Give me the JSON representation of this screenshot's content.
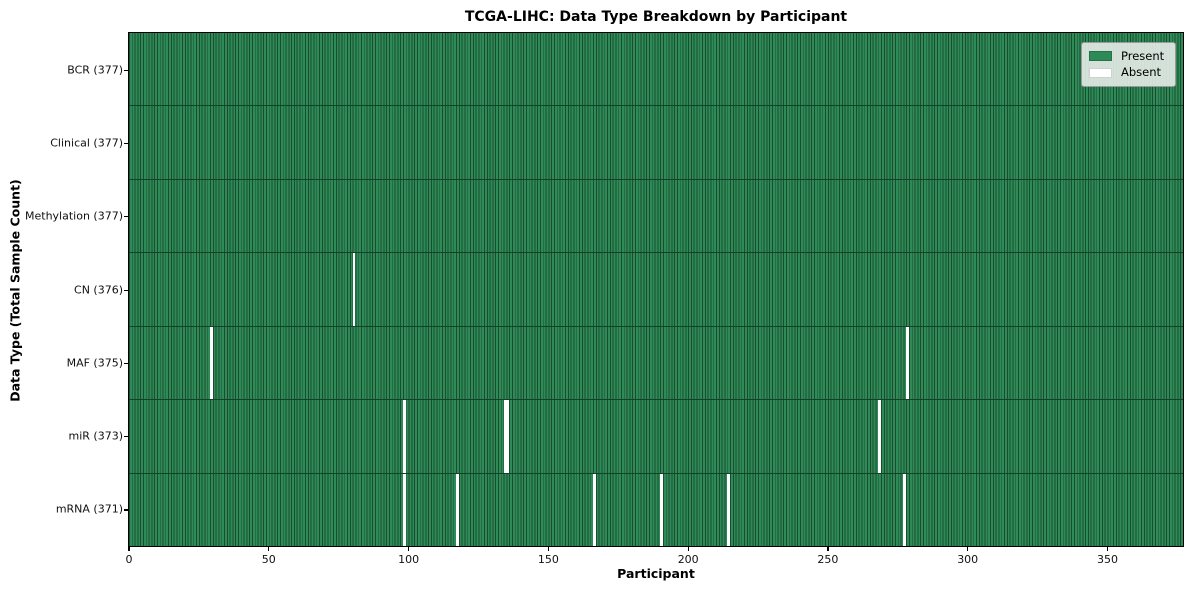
{
  "chart_data": {
    "type": "heatmap",
    "title": "TCGA-LIHC: Data Type Breakdown by Participant",
    "xlabel": "Participant",
    "ylabel": "Data Type (Total Sample Count)",
    "x_ticks": [
      0,
      50,
      100,
      150,
      200,
      250,
      300,
      350
    ],
    "x_range": [
      0,
      377
    ],
    "n_participants": 377,
    "grid": false,
    "colors": {
      "present": "#2e8b57",
      "absent": "#ffffff",
      "cell_edge": "#1a4c30",
      "row_divider": "#143f29"
    },
    "legend": {
      "position": "upper right",
      "items": [
        {
          "name": "present",
          "label": "Present",
          "color": "#2e8b57"
        },
        {
          "name": "absent",
          "label": "Absent",
          "color": "#ffffff"
        }
      ]
    },
    "rows": [
      {
        "name": "bcr",
        "label": "BCR (377)",
        "data_type": "BCR",
        "present_count": 377,
        "absent_participants": []
      },
      {
        "name": "clinical",
        "label": "Clinical (377)",
        "data_type": "Clinical",
        "present_count": 377,
        "absent_participants": []
      },
      {
        "name": "methylation",
        "label": "Methylation (377)",
        "data_type": "Methylation",
        "present_count": 377,
        "absent_participants": []
      },
      {
        "name": "cn",
        "label": "CN (376)",
        "data_type": "CN",
        "present_count": 376,
        "absent_participants": [
          80
        ]
      },
      {
        "name": "maf",
        "label": "MAF (375)",
        "data_type": "MAF",
        "present_count": 375,
        "absent_participants": [
          29,
          278
        ]
      },
      {
        "name": "mir",
        "label": "miR (373)",
        "data_type": "miR",
        "present_count": 373,
        "absent_participants": [
          98,
          134,
          135,
          268
        ]
      },
      {
        "name": "mrna",
        "label": "mRNA (371)",
        "data_type": "mRNA",
        "present_count": 371,
        "absent_participants": [
          98,
          117,
          166,
          190,
          214,
          277
        ]
      }
    ]
  }
}
